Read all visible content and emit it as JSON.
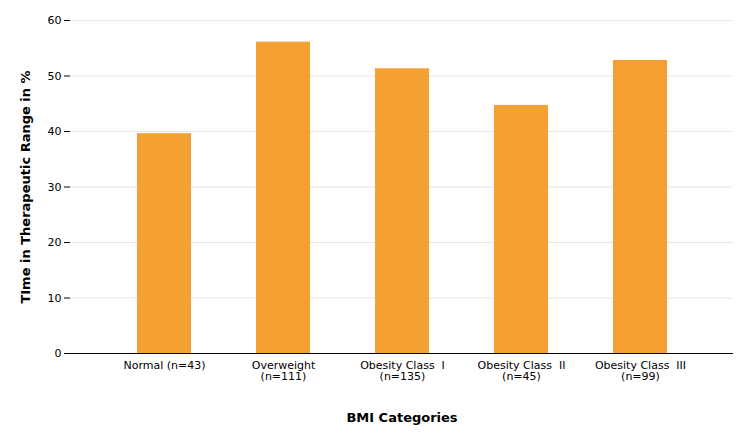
{
  "chart_data": {
    "type": "bar",
    "categories": [
      "Normal (n=43)",
      "Overweight\n(n=111)",
      "Obesity Class  I\n(n=135)",
      "Obesity Class  II\n(n=45)",
      "Obesity Class  III\n(n=99)"
    ],
    "values": [
      39.6,
      56.1,
      51.3,
      44.7,
      52.8
    ],
    "color": "#F5A033",
    "xlabel": "BMI Categories",
    "ylabel": "TIme in Therapeutic Range in %",
    "ylim": [
      0,
      60
    ],
    "yticks": [
      0,
      10,
      20,
      30,
      40,
      50,
      60
    ],
    "grid": true
  }
}
